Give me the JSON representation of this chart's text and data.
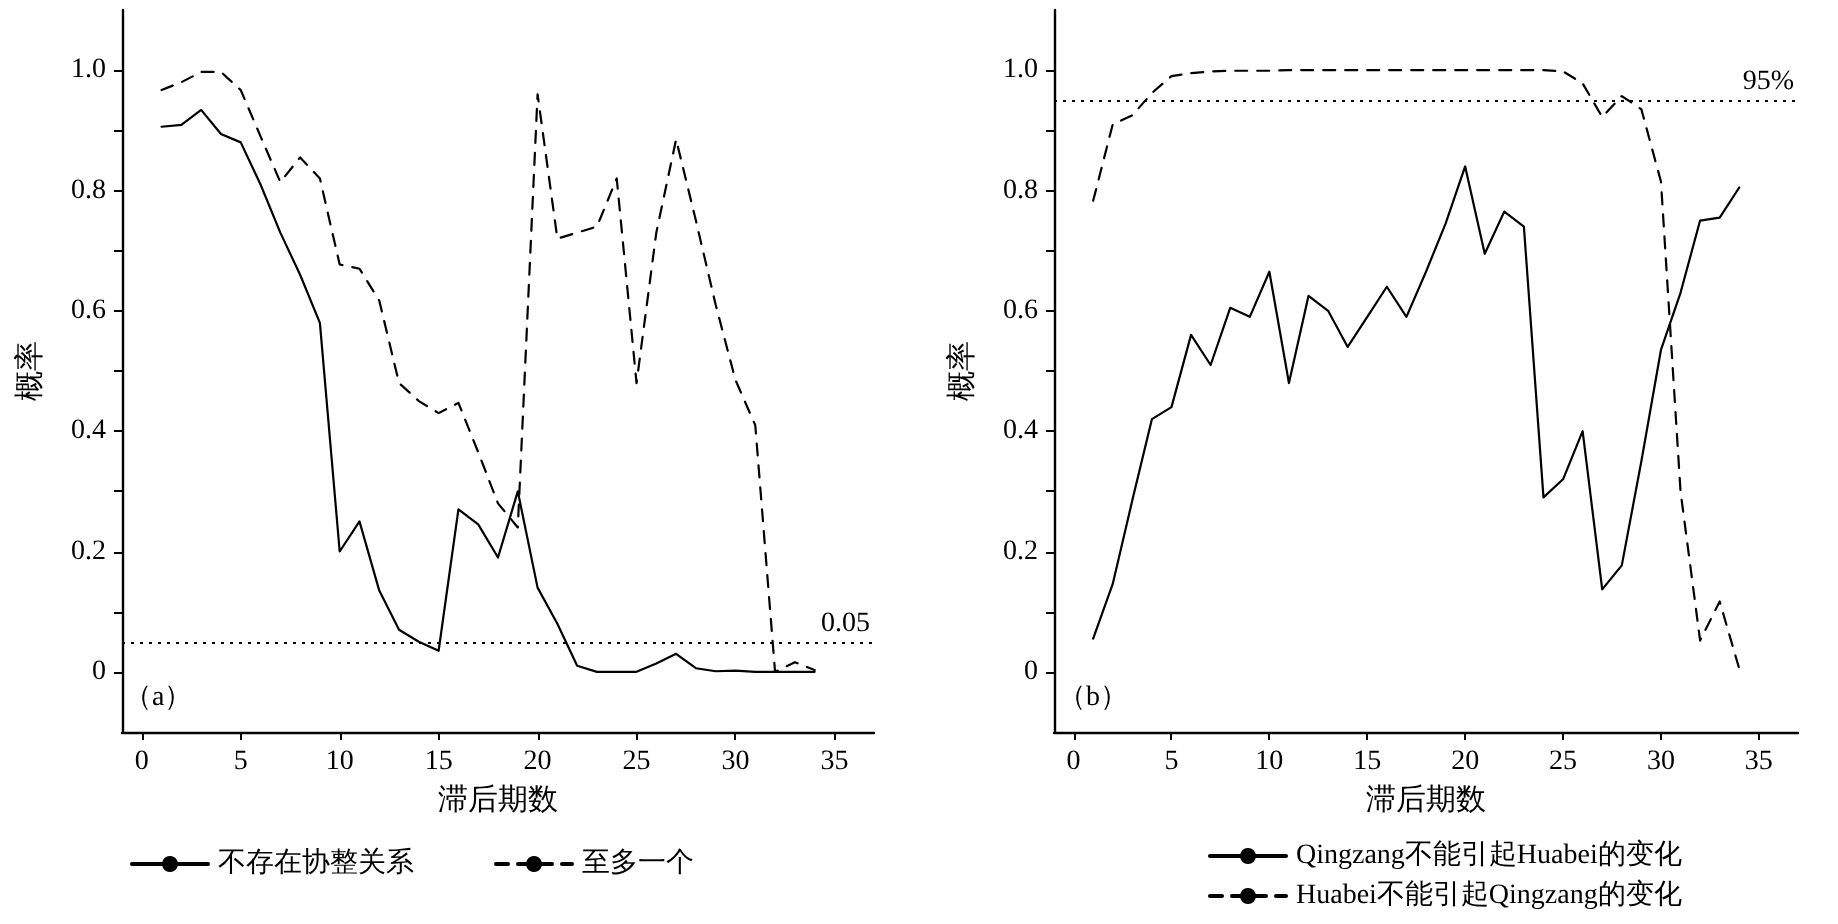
{
  "chart_data": [
    {
      "type": "line",
      "xlabel": "滞后期数",
      "ylabel": "概率",
      "annotations": [
        "（a）"
      ],
      "legend": "bottom",
      "grid": false,
      "marker": "none",
      "x": [
        1,
        2,
        3,
        4,
        5,
        6,
        7,
        8,
        9,
        10,
        11,
        12,
        13,
        14,
        15,
        16,
        17,
        18,
        19,
        20,
        21,
        22,
        23,
        24,
        25,
        26,
        27,
        28,
        29,
        30,
        31,
        32,
        33,
        34
      ],
      "xlim": [
        -1,
        37
      ],
      "xticks": [
        0,
        5,
        10,
        15,
        20,
        25,
        30,
        35
      ],
      "ylim": [
        -0.1,
        1.1
      ],
      "yticks": [
        0,
        {
          "value": 0.1,
          "label": null
        },
        0.2,
        {
          "value": 0.3,
          "label": null
        },
        0.4,
        {
          "value": 0.5,
          "label": null
        },
        0.6,
        {
          "value": 0.7,
          "label": null
        },
        0.8,
        {
          "value": 0.9,
          "label": null
        },
        {
          "value": 1,
          "label": "1.0"
        }
      ],
      "ref_lines": [
        {
          "axis": "y",
          "value": 0.05,
          "label": "0.05",
          "line_style": "dotted"
        }
      ],
      "series": [
        {
          "name": "不存在协整关系",
          "color": "#000000",
          "line_style": "solid",
          "values": [
            0.906,
            0.909,
            0.934,
            0.894,
            0.88,
            0.81,
            0.73,
            0.66,
            0.58,
            0.2,
            0.25,
            0.135,
            0.07,
            0.05,
            0.035,
            0.27,
            0.245,
            0.19,
            0.3,
            0.14,
            0.08,
            0.01,
            0,
            0,
            0,
            0.014,
            0.03,
            0.006,
            0.001,
            0.002,
            0,
            0,
            0,
            0
          ]
        },
        {
          "name": "至多一个",
          "color": "#000000",
          "line_style": "dashed",
          "values": [
            0.967,
            0.98,
            0.997,
            0.997,
            0.967,
            0.89,
            0.814,
            0.855,
            0.82,
            0.677,
            0.67,
            0.617,
            0.48,
            0.45,
            0.43,
            0.447,
            0.365,
            0.28,
            0.24,
            0.96,
            0.72,
            0.73,
            0.74,
            0.82,
            0.48,
            0.73,
            0.885,
            0.75,
            0.61,
            0.485,
            0.41,
            0,
            0.016,
            0.003
          ]
        }
      ]
    },
    {
      "type": "line",
      "xlabel": "滞后期数",
      "ylabel": "概率",
      "annotations": [
        "（b）"
      ],
      "legend": "bottom",
      "grid": false,
      "marker": "none",
      "x": [
        1,
        2,
        3,
        4,
        5,
        6,
        7,
        8,
        9,
        10,
        11,
        12,
        13,
        14,
        15,
        16,
        17,
        18,
        19,
        20,
        21,
        22,
        23,
        24,
        25,
        26,
        27,
        28,
        29,
        30,
        31,
        32,
        33,
        34
      ],
      "xlim": [
        -1,
        37
      ],
      "xticks": [
        0,
        5,
        10,
        15,
        20,
        25,
        30,
        35
      ],
      "ylim": [
        -0.1,
        1.1
      ],
      "yticks": [
        0,
        {
          "value": 0.1,
          "label": null
        },
        0.2,
        {
          "value": 0.3,
          "label": null
        },
        0.4,
        {
          "value": 0.5,
          "label": null
        },
        0.6,
        {
          "value": 0.7,
          "label": null
        },
        0.8,
        {
          "value": 0.9,
          "label": null
        },
        {
          "value": 1,
          "label": "1.0"
        }
      ],
      "ref_lines": [
        {
          "axis": "y",
          "value": 0.95,
          "label": "95%",
          "line_style": "dotted"
        }
      ],
      "series": [
        {
          "name": "Qingzang不能引起Huabei的变化",
          "color": "#000000",
          "line_style": "solid",
          "values": [
            0.055,
            0.146,
            0.285,
            0.42,
            0.44,
            0.56,
            0.51,
            0.605,
            0.59,
            0.665,
            0.48,
            0.625,
            0.6,
            0.54,
            0.59,
            0.64,
            0.59,
            0.665,
            0.745,
            0.84,
            0.695,
            0.765,
            0.74,
            0.29,
            0.32,
            0.4,
            0.137,
            0.177,
            0.35,
            0.535,
            0.63,
            0.75,
            0.755,
            0.805
          ]
        },
        {
          "name": "Huabei不能引起Qingzang的变化",
          "color": "#000000",
          "line_style": "dashed",
          "values": [
            0.783,
            0.91,
            0.925,
            0.962,
            0.99,
            0.995,
            0.998,
            0.999,
            0.999,
            0.999,
            1,
            1,
            1,
            1,
            1,
            1,
            1,
            1,
            1,
            1,
            1,
            1,
            1,
            1,
            0.998,
            0.978,
            0.922,
            0.957,
            0.935,
            0.815,
            0.3,
            0.052,
            0.117,
            0.005
          ]
        }
      ]
    }
  ]
}
